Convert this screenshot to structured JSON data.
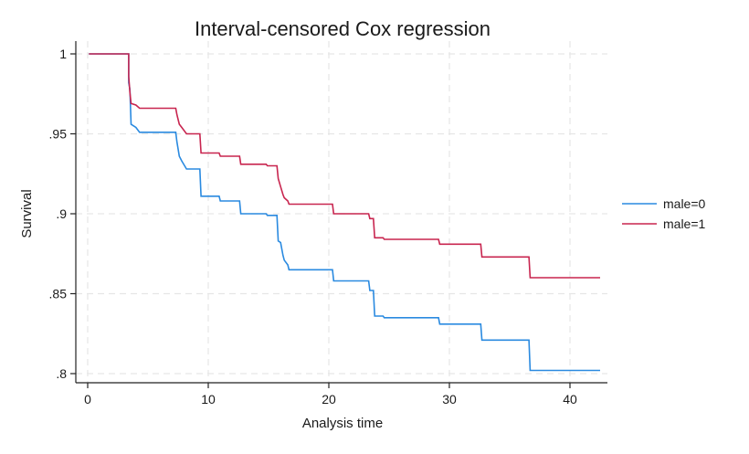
{
  "chart_data": {
    "type": "line",
    "step": true,
    "title": "Interval-censored Cox regression",
    "xlabel": "Analysis time",
    "ylabel": "Survival",
    "xlim": [
      0,
      43
    ],
    "ylim": [
      0.795,
      1.005
    ],
    "x_ticks": [
      0,
      10,
      20,
      30,
      40
    ],
    "x_tick_labels": [
      "0",
      "10",
      "20",
      "30",
      "40"
    ],
    "y_ticks": [
      1,
      0.95,
      0.9,
      0.85,
      0.8
    ],
    "y_tick_labels": [
      "1",
      ".95",
      ".9",
      ".85",
      ".8"
    ],
    "grid": true,
    "legend_position": "right",
    "series": [
      {
        "name": "male=0",
        "color": "#2a8ae0",
        "points": [
          [
            0.1,
            1.0
          ],
          [
            3.4,
            1.0
          ],
          [
            3.4,
            0.982
          ],
          [
            3.5,
            0.978
          ],
          [
            3.6,
            0.956
          ],
          [
            4.0,
            0.954
          ],
          [
            4.3,
            0.951
          ],
          [
            7.3,
            0.951
          ],
          [
            7.4,
            0.945
          ],
          [
            7.6,
            0.936
          ],
          [
            7.8,
            0.933
          ],
          [
            8.2,
            0.928
          ],
          [
            9.3,
            0.928
          ],
          [
            9.4,
            0.911
          ],
          [
            10.9,
            0.911
          ],
          [
            11.0,
            0.908
          ],
          [
            12.6,
            0.908
          ],
          [
            12.7,
            0.9
          ],
          [
            14.8,
            0.9
          ],
          [
            14.9,
            0.899
          ],
          [
            15.7,
            0.899
          ],
          [
            15.8,
            0.883
          ],
          [
            16.0,
            0.882
          ],
          [
            16.2,
            0.874
          ],
          [
            16.3,
            0.871
          ],
          [
            16.6,
            0.868
          ],
          [
            16.7,
            0.865
          ],
          [
            20.3,
            0.865
          ],
          [
            20.4,
            0.858
          ],
          [
            23.3,
            0.858
          ],
          [
            23.4,
            0.852
          ],
          [
            23.7,
            0.852
          ],
          [
            23.8,
            0.836
          ],
          [
            24.5,
            0.836
          ],
          [
            24.6,
            0.835
          ],
          [
            29.1,
            0.835
          ],
          [
            29.2,
            0.831
          ],
          [
            32.6,
            0.831
          ],
          [
            32.7,
            0.821
          ],
          [
            36.6,
            0.821
          ],
          [
            36.7,
            0.802
          ],
          [
            42.5,
            0.802
          ]
        ]
      },
      {
        "name": "male=1",
        "color": "#c8254f",
        "points": [
          [
            0.1,
            1.0
          ],
          [
            3.4,
            1.0
          ],
          [
            3.4,
            0.986
          ],
          [
            3.5,
            0.976
          ],
          [
            3.6,
            0.969
          ],
          [
            4.0,
            0.968
          ],
          [
            4.3,
            0.966
          ],
          [
            7.3,
            0.966
          ],
          [
            7.4,
            0.962
          ],
          [
            7.6,
            0.956
          ],
          [
            7.8,
            0.954
          ],
          [
            8.2,
            0.95
          ],
          [
            9.3,
            0.95
          ],
          [
            9.4,
            0.938
          ],
          [
            10.9,
            0.938
          ],
          [
            11.0,
            0.936
          ],
          [
            12.6,
            0.936
          ],
          [
            12.7,
            0.931
          ],
          [
            14.8,
            0.931
          ],
          [
            14.9,
            0.93
          ],
          [
            15.7,
            0.93
          ],
          [
            15.8,
            0.922
          ],
          [
            16.0,
            0.917
          ],
          [
            16.2,
            0.912
          ],
          [
            16.3,
            0.91
          ],
          [
            16.6,
            0.908
          ],
          [
            16.7,
            0.906
          ],
          [
            20.3,
            0.906
          ],
          [
            20.4,
            0.9
          ],
          [
            23.3,
            0.9
          ],
          [
            23.4,
            0.897
          ],
          [
            23.7,
            0.897
          ],
          [
            23.8,
            0.885
          ],
          [
            24.5,
            0.885
          ],
          [
            24.6,
            0.884
          ],
          [
            29.1,
            0.884
          ],
          [
            29.2,
            0.881
          ],
          [
            32.6,
            0.881
          ],
          [
            32.7,
            0.873
          ],
          [
            36.6,
            0.873
          ],
          [
            36.7,
            0.86
          ],
          [
            42.5,
            0.86
          ]
        ]
      }
    ]
  }
}
